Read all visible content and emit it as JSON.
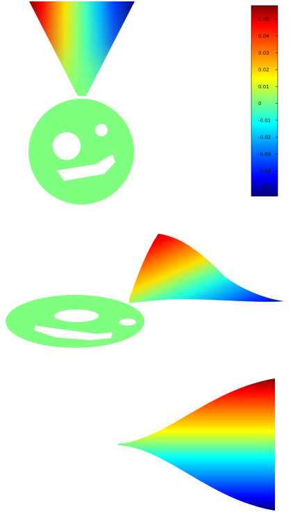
{
  "colormap": {
    "name": "jet",
    "range": [
      -0.055,
      0.058
    ],
    "stops": [
      "#00007f",
      "#0000ff",
      "#00a0ff",
      "#20ffd0",
      "#80ff80",
      "#d0ff30",
      "#ffd000",
      "#ff7000",
      "#ff0000",
      "#7f0000"
    ]
  },
  "colorbar": {
    "ticks": [
      {
        "value": 0.05,
        "label": "0.05"
      },
      {
        "value": 0.04,
        "label": "0.04"
      },
      {
        "value": 0.03,
        "label": "0.03"
      },
      {
        "value": 0.02,
        "label": "0.02"
      },
      {
        "value": 0.01,
        "label": "0.01"
      },
      {
        "value": 0,
        "label": "0"
      },
      {
        "value": -0.01,
        "label": "-0.01"
      },
      {
        "value": -0.02,
        "label": "-0.02"
      },
      {
        "value": -0.03,
        "label": "-0.03"
      },
      {
        "value": -0.04,
        "label": "-0.04"
      },
      {
        "value": -0.05,
        "label": "-0.05"
      }
    ]
  },
  "panels": [
    {
      "view": "top",
      "shape": "medal-smiley"
    },
    {
      "view": "oblique",
      "shape": "medal-smiley"
    },
    {
      "view": "side",
      "shape": "ribbon-profile"
    }
  ],
  "body_color": "#80ff80"
}
